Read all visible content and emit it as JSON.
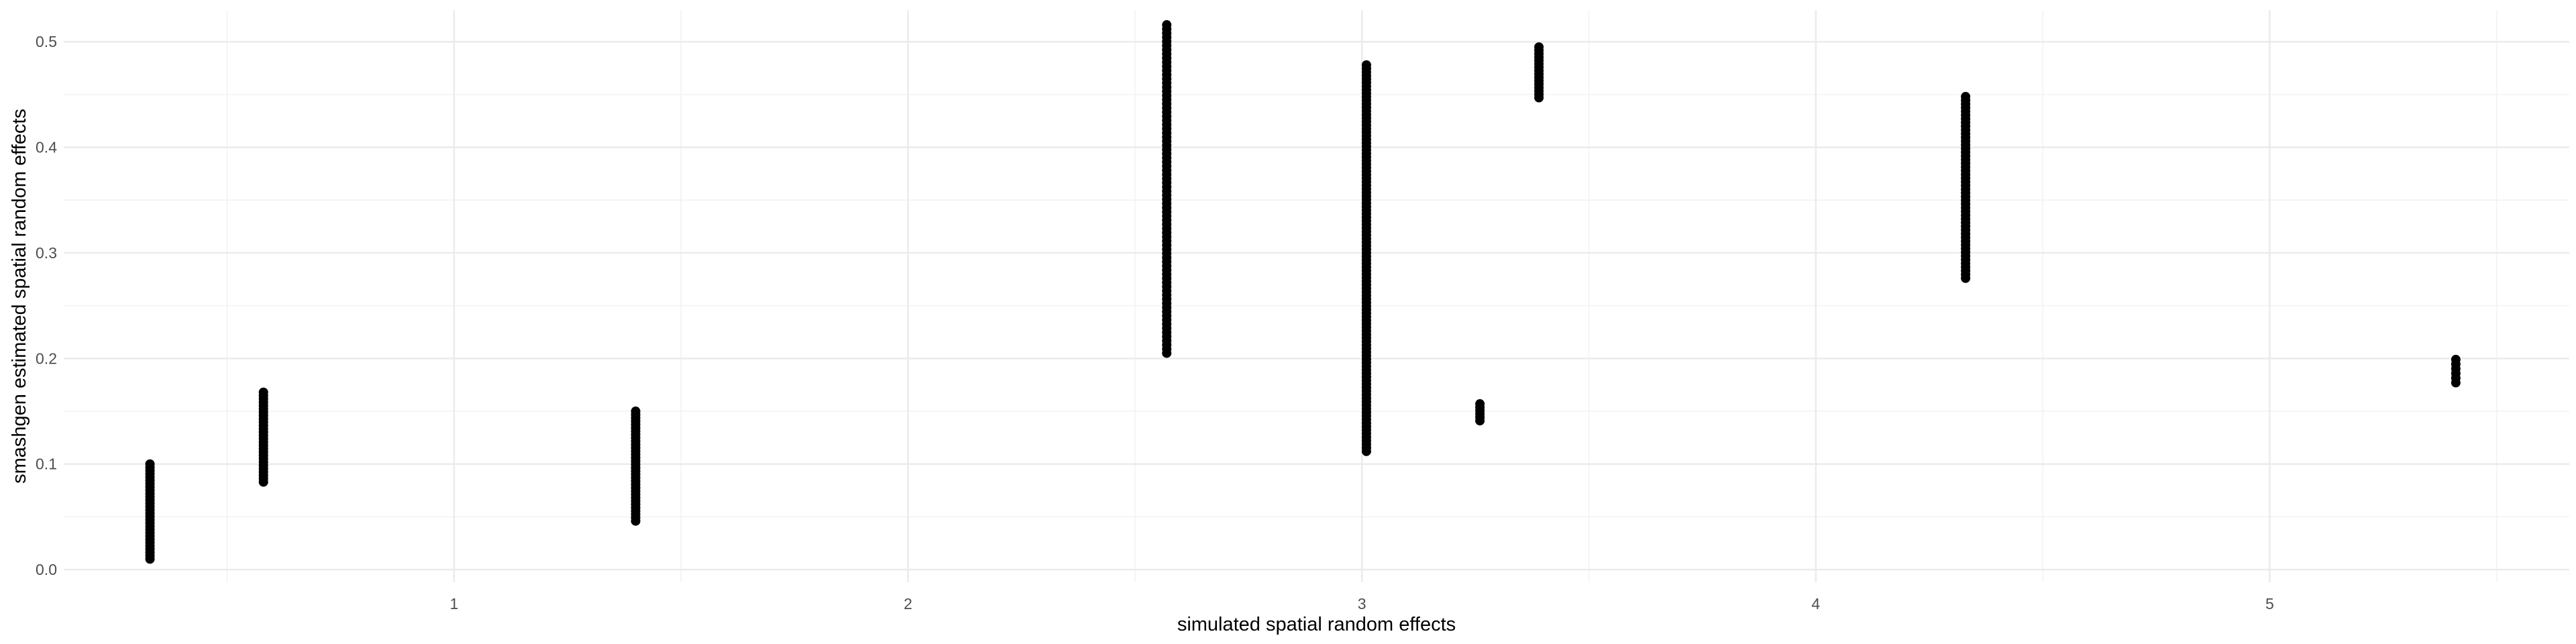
{
  "chart_data": {
    "type": "scatter",
    "title": "",
    "xlabel": "simulated spatial random effects",
    "ylabel": "smashgen estimated spatial random effects",
    "xlim": [
      0.14,
      5.66
    ],
    "ylim": [
      -0.012,
      0.53
    ],
    "x_ticks": [
      1,
      2,
      3,
      4,
      5
    ],
    "x_tick_labels": [
      "1",
      "2",
      "3",
      "4",
      "5"
    ],
    "y_ticks": [
      0.0,
      0.1,
      0.2,
      0.3,
      0.4,
      0.5
    ],
    "y_tick_labels": [
      "0.0",
      "0.1",
      "0.2",
      "0.3",
      "0.4",
      "0.5"
    ],
    "grid": true,
    "legend": "none",
    "point_color": "#000000",
    "groups": [
      {
        "x": 0.33,
        "y_min": 0.01,
        "y_max": 0.1,
        "count": 30
      },
      {
        "x": 0.58,
        "y_min": 0.083,
        "y_max": 0.168,
        "count": 28
      },
      {
        "x": 1.4,
        "y_min": 0.046,
        "y_max": 0.15,
        "count": 34
      },
      {
        "x": 2.57,
        "y_min": 0.205,
        "y_max": 0.516,
        "count": 80
      },
      {
        "x": 3.01,
        "y_min": 0.112,
        "y_max": 0.478,
        "count": 110
      },
      {
        "x": 3.26,
        "y_min": 0.141,
        "y_max": 0.157,
        "count": 6
      },
      {
        "x": 3.39,
        "y_min": 0.447,
        "y_max": 0.495,
        "count": 16
      },
      {
        "x": 4.33,
        "y_min": 0.276,
        "y_max": 0.448,
        "count": 50
      },
      {
        "x": 5.41,
        "y_min": 0.177,
        "y_max": 0.199,
        "count": 6
      }
    ]
  }
}
